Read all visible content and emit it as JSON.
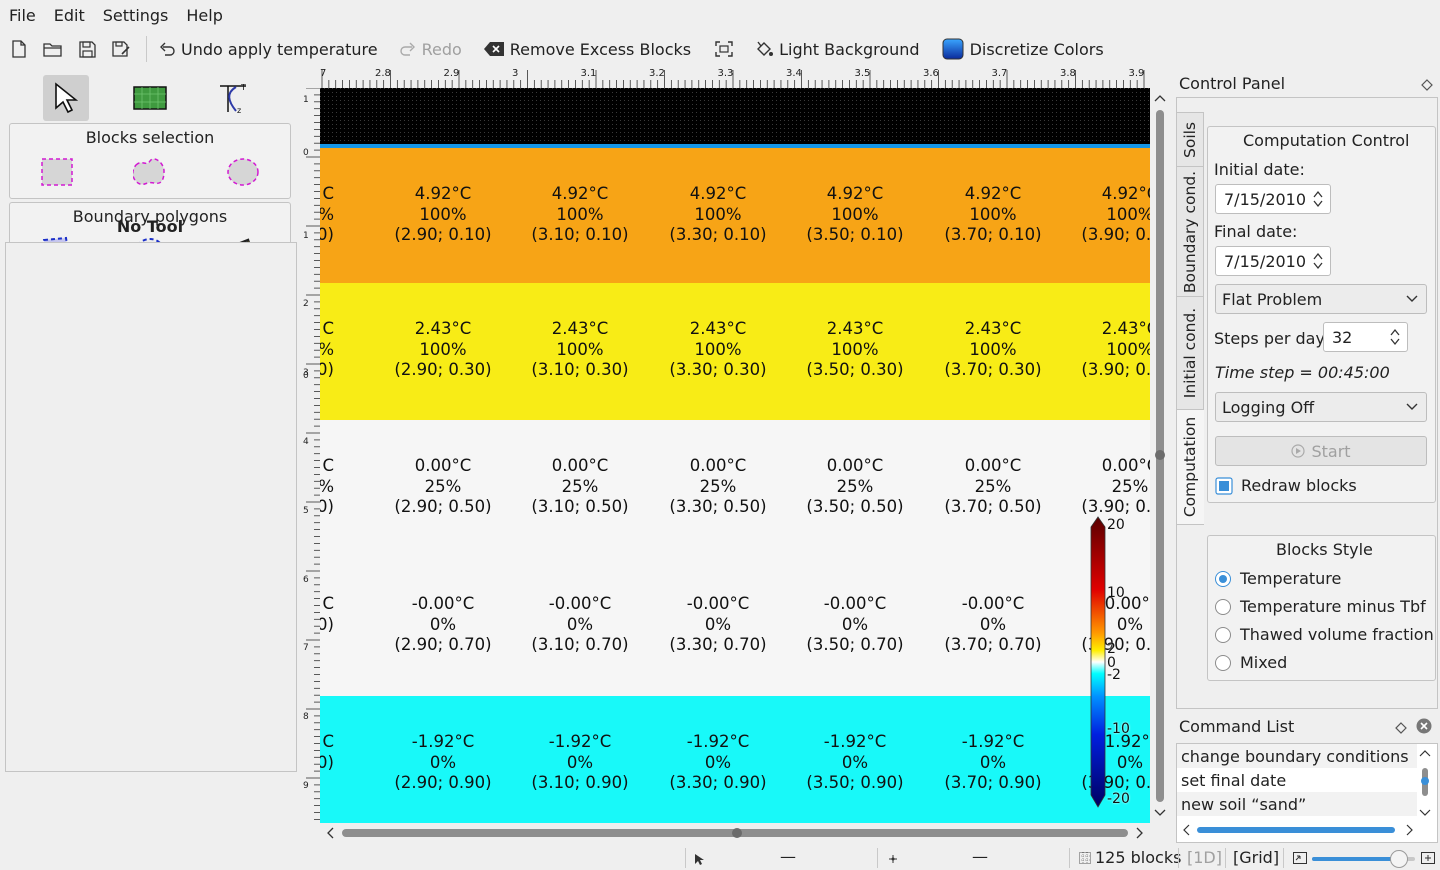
{
  "menu": [
    "File",
    "Edit",
    "Settings",
    "Help"
  ],
  "toolbar": {
    "undo_label": "Undo apply temperature",
    "redo_label": "Redo",
    "remove_label": "Remove Excess Blocks",
    "background_label": "Light Background",
    "discretize_label": "Discretize Colors"
  },
  "left": {
    "blocks_selection": "Blocks selection",
    "boundary_polygons": "Boundary polygons",
    "status": "No Tool"
  },
  "ruler": {
    "x_labels": [
      "7",
      "2.8",
      "2.9",
      "3",
      "3.1",
      "3.2",
      "3.3",
      "3.4",
      "3.5",
      "3.6",
      "3.7",
      "3.8",
      "3.9"
    ],
    "y_labels": [
      "1",
      "0",
      "1",
      "2",
      "0",
      "3",
      "4",
      "5",
      "6",
      "7",
      "8",
      "9"
    ]
  },
  "grid": {
    "rows": [
      {
        "temp": "4.92°C",
        "pct": "100%",
        "y": "0.10",
        "color": "#f7a416"
      },
      {
        "temp": "2.43°C",
        "pct": "100%",
        "y": "0.30",
        "color": "#f8ec16"
      },
      {
        "temp": "0.00°C",
        "pct": "25%",
        "y": "0.50",
        "color": "#f6f6f6"
      },
      {
        "temp": "-0.00°C",
        "pct": "0%",
        "y": "0.70",
        "color": "#f6f6f6"
      },
      {
        "temp": "-1.92°C",
        "pct": "0%",
        "y": "0.90",
        "color": "#18f9f9"
      }
    ],
    "columns": [
      "2.90",
      "3.10",
      "3.30",
      "3.50",
      "3.70",
      "3.90"
    ],
    "partial_left": {
      "temp": "C",
      "pct_0": "%",
      "pct_1": "%"
    },
    "top_band_color": "#000000"
  },
  "colorbar": {
    "labels": [
      "20",
      "10",
      "2",
      "0",
      "-2",
      "-10",
      "-20"
    ]
  },
  "control_panel": {
    "title": "Control Panel",
    "tabs": [
      "Soils",
      "Boundary cond.",
      "Initial cond.",
      "Computation"
    ],
    "computation_control": "Computation Control",
    "initial_date_label": "Initial date:",
    "initial_date": "7/15/2010",
    "final_date_label": "Final date:",
    "final_date": "7/15/2010",
    "problem_type": "Flat Problem",
    "steps_label": "Steps per day:",
    "steps_value": "32",
    "time_step": "Time step = 00:45:00",
    "logging": "Logging Off",
    "start_label": "Start",
    "redraw_label": "Redraw blocks",
    "blocks_style_title": "Blocks Style",
    "styles": [
      "Temperature",
      "Temperature minus Tbf",
      "Thawed volume fraction",
      "Mixed"
    ],
    "selected_style": "Temperature"
  },
  "command_list": {
    "title": "Command List",
    "items": [
      "change boundary conditions",
      "set final date",
      "new soil “sand”"
    ]
  },
  "status": {
    "blocks": "125 blocks",
    "mode_1d": "[1D]",
    "mode_grid": "[Grid]",
    "zoom_level": 0.84
  }
}
